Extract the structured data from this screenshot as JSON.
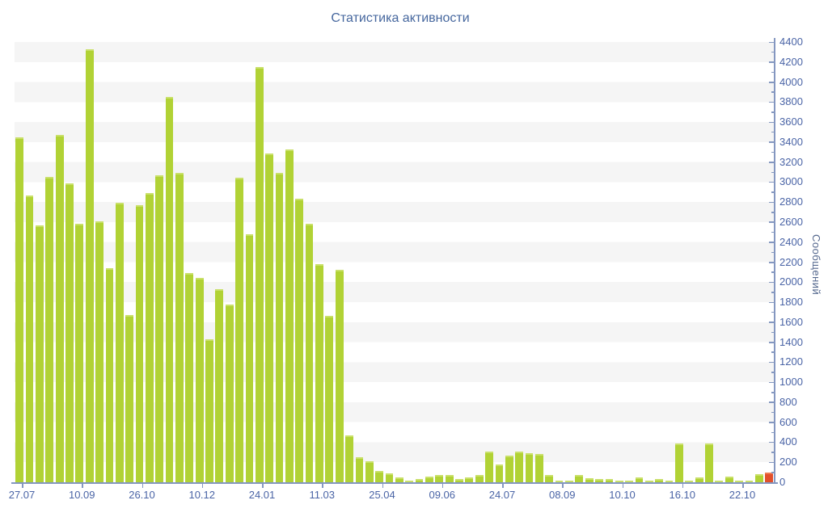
{
  "title": "Статистика активности",
  "colors": {
    "bar_green": "#b1d235",
    "bar_cap": "#c9e06a",
    "bar_red": "#e2502b",
    "axis_line": "#8497c0",
    "tick_label": "#4a64a6",
    "title_color": "#46679e",
    "stripe": "#f5f5f5",
    "background": "#ffffff",
    "ylabel_color": "#55688e"
  },
  "chart_data": {
    "type": "bar",
    "title": "Статистика активности",
    "ylabel": "Сообщений",
    "xlabel": "",
    "ylim": [
      0,
      4400
    ],
    "ytick_step": 200,
    "ytick_minor_step": 100,
    "grid": "horizontal striped bands every 200",
    "legend_position": "none",
    "x_tick_labels": [
      "27.07",
      "10.09",
      "26.10",
      "10.12",
      "24.01",
      "11.03",
      "25.04",
      "09.06",
      "24.07",
      "08.09",
      "10.10",
      "16.10",
      "22.10"
    ],
    "values": [
      3450,
      2870,
      2570,
      3050,
      3470,
      2990,
      2580,
      4330,
      2610,
      2140,
      2790,
      1670,
      2770,
      2890,
      3070,
      3850,
      3090,
      2090,
      2040,
      1430,
      1930,
      1780,
      3040,
      2480,
      4150,
      3290,
      3090,
      3330,
      2830,
      2580,
      2180,
      1660,
      2120,
      470,
      250,
      210,
      110,
      90,
      50,
      20,
      30,
      60,
      70,
      70,
      30,
      50,
      70,
      310,
      180,
      270,
      310,
      290,
      280,
      70,
      20,
      20,
      70,
      40,
      30,
      30,
      20,
      20,
      50,
      20,
      30,
      20,
      390,
      15,
      50,
      390,
      20,
      60,
      15,
      20,
      80,
      100
    ],
    "last_bar_highlighted_red": true
  }
}
